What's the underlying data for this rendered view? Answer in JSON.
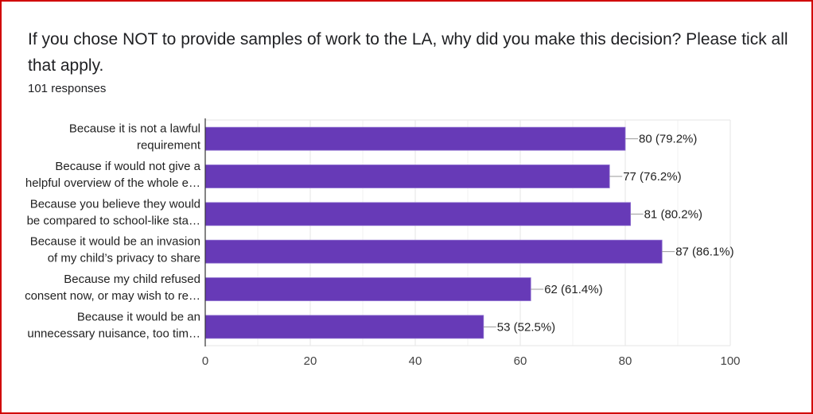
{
  "title": "If you chose NOT to provide samples of work to the LA, why did you make this decision? Please tick all that apply.",
  "subtitle": "101 responses",
  "chart_data": {
    "type": "bar",
    "orientation": "horizontal",
    "categories": [
      [
        "Because it is not a lawful",
        "requirement"
      ],
      [
        "Because if would not give a",
        "helpful overview of the whole e…"
      ],
      [
        "Because you believe they would",
        "be compared to school-like sta…"
      ],
      [
        "Because it would be an invasion",
        "of my child’s privacy to share"
      ],
      [
        "Because my child refused",
        "consent now, or may wish to re…"
      ],
      [
        "Because it would be an",
        "unnecessary nuisance, too tim…"
      ]
    ],
    "values": [
      80,
      77,
      81,
      87,
      62,
      53
    ],
    "data_labels": [
      "80 (79.2%)",
      "77 (76.2%)",
      "81 (80.2%)",
      "87 (86.1%)",
      "62 (61.4%)",
      "53 (52.5%)"
    ],
    "xlim": [
      0,
      100
    ],
    "xticks": [
      "0",
      "20",
      "40",
      "60",
      "80",
      "100"
    ],
    "grid": true,
    "bar_color": "#673ab7",
    "frame_color": "#d00000"
  }
}
